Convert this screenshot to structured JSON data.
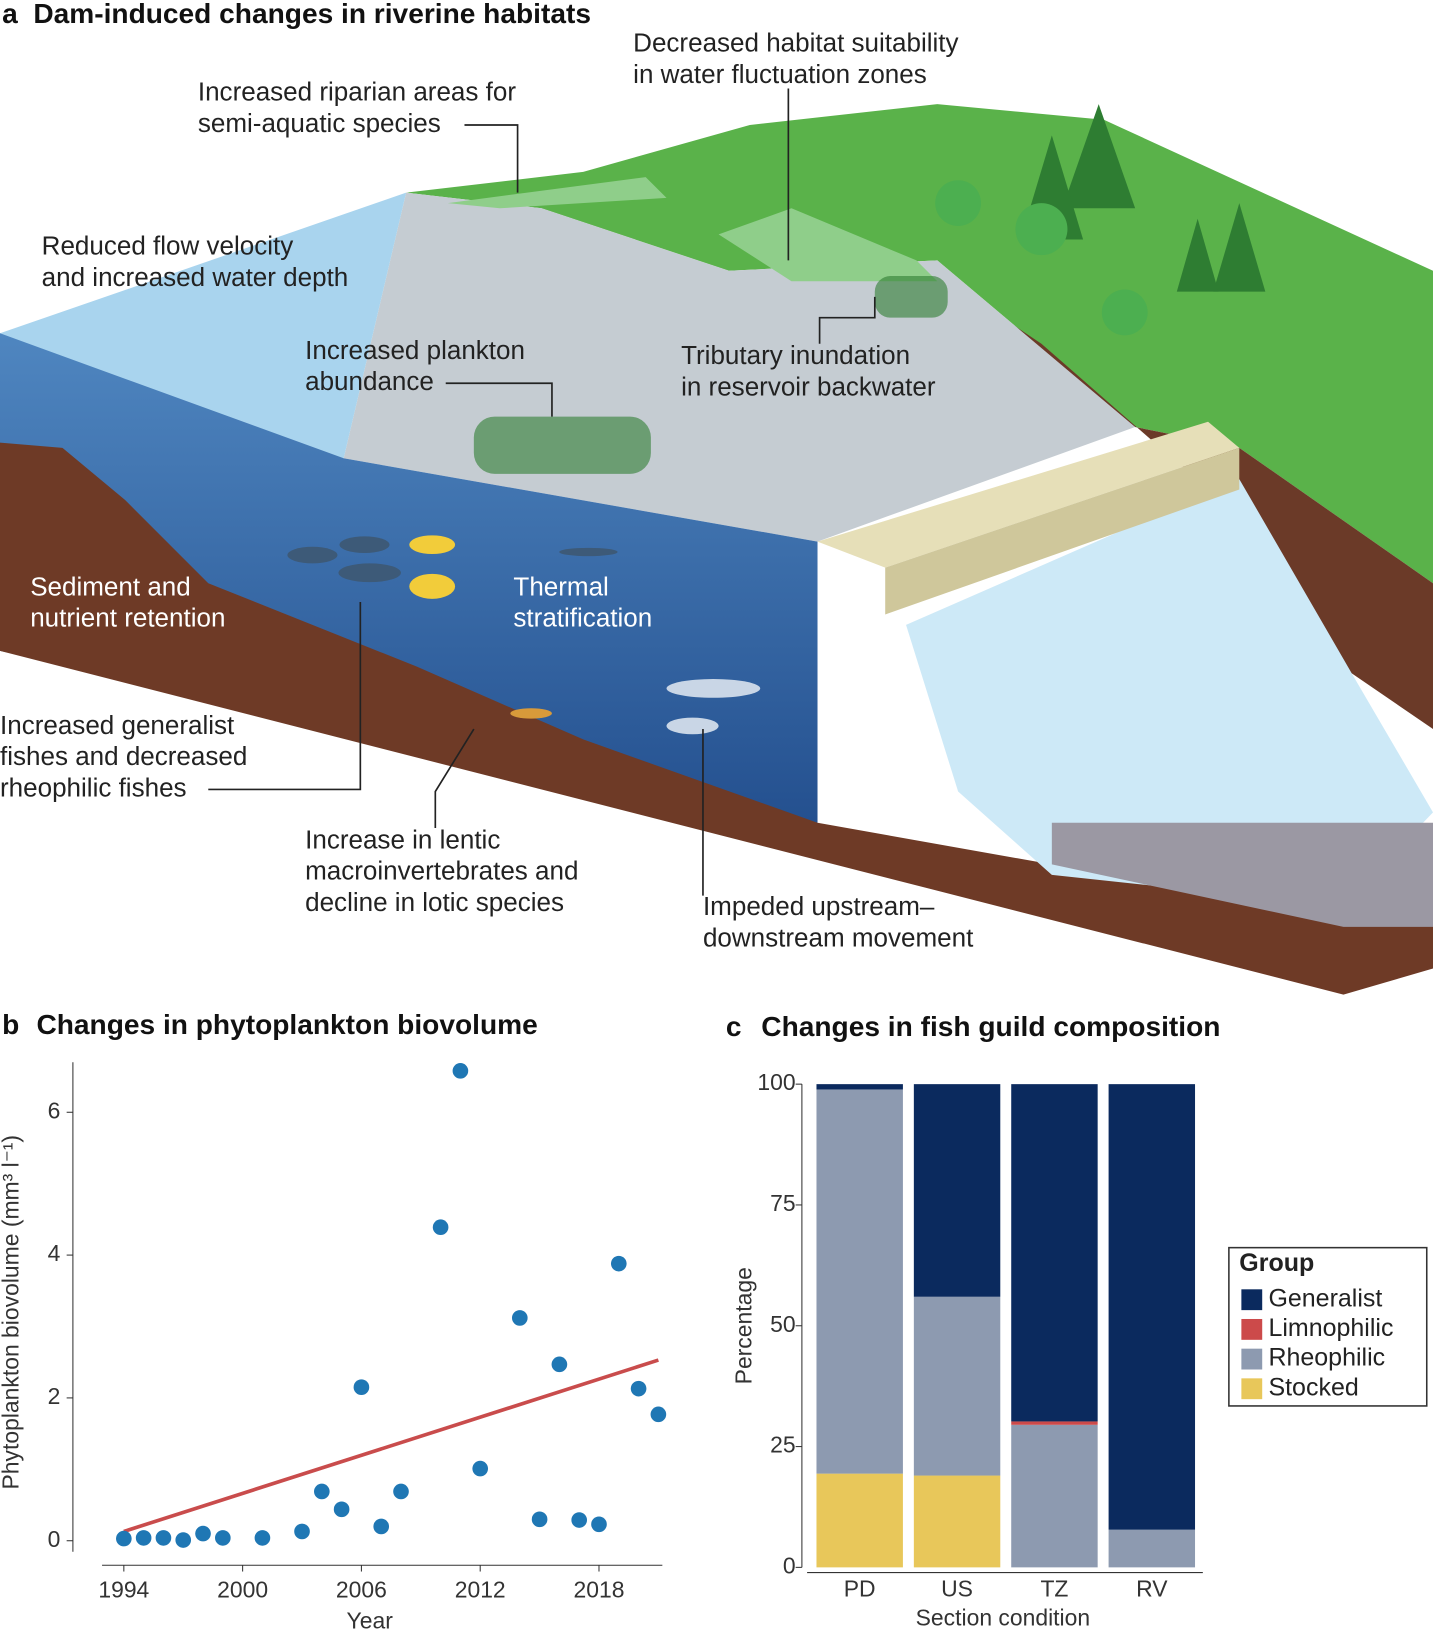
{
  "diagram": {
    "letter": "a",
    "title": "Dam-induced changes in riverine habitats",
    "labels": [
      {
        "lines": [
          "Increased riparian areas for",
          "semi-aquatic species"
        ]
      },
      {
        "lines": [
          "Decreased habitat suitability",
          "in water fluctuation zones"
        ]
      },
      {
        "lines": [
          "Reduced flow velocity",
          "and increased water depth"
        ]
      },
      {
        "lines": [
          "Increased plankton",
          "abundance"
        ]
      },
      {
        "lines": [
          "Tributary inundation",
          "in reservoir backwater"
        ]
      },
      {
        "lines": [
          "Sediment and",
          "nutrient retention"
        ]
      },
      {
        "lines": [
          "Thermal",
          "stratification"
        ]
      },
      {
        "lines": [
          "Increased generalist",
          "fishes and decreased",
          "rheophilic fishes"
        ]
      },
      {
        "lines": [
          "Increase in lentic",
          "macroinvertebrates and",
          "decline in lotic species"
        ]
      },
      {
        "lines": [
          "Impeded upstream–",
          "downstream movement"
        ]
      }
    ]
  },
  "chart_data": [
    {
      "type": "scatter",
      "letter": "b",
      "title": "Changes in phytoplankton biovolume",
      "xlabel": "Year",
      "ylabel": "Phytoplankton biovolume (mm³ l⁻¹)",
      "x": [
        1994,
        1995,
        1996,
        1997,
        1998,
        1999,
        2001,
        2003,
        2004,
        2005,
        2006,
        2007,
        2008,
        2010,
        2011,
        2012,
        2014,
        2015,
        2016,
        2017,
        2018,
        2019,
        2020,
        2021
      ],
      "values": [
        0.03,
        0.04,
        0.04,
        0.01,
        0.1,
        0.04,
        0.04,
        0.13,
        0.69,
        0.44,
        2.15,
        0.2,
        0.69,
        4.39,
        6.58,
        1.01,
        3.12,
        0.3,
        2.47,
        0.29,
        0.23,
        3.88,
        2.13,
        1.77
      ],
      "color": "#1f77b4",
      "trend": {
        "x": [
          1994,
          2021
        ],
        "values": [
          0.13,
          2.53
        ],
        "color": "#c94c4c"
      },
      "xlim": [
        1992.9,
        2021.2
      ],
      "ylim": [
        -0.3,
        6.7
      ],
      "xticks": [
        1994,
        2000,
        2006,
        2012,
        2018
      ],
      "yticks": [
        0,
        2,
        4,
        6
      ]
    },
    {
      "type": "stacked_bar",
      "letter": "c",
      "title": "Changes in fish guild composition",
      "xlabel": "Section condition",
      "ylabel": "Percentage",
      "categories": [
        "PD",
        "US",
        "TZ",
        "RV"
      ],
      "legend_title": "Group",
      "legend": "right",
      "series": [
        {
          "name": "Generalist",
          "color": "#0b2a5e",
          "values": [
            1.1,
            44.0,
            69.8,
            92.2
          ]
        },
        {
          "name": "Limnophilic",
          "color": "#cc4a4a",
          "values": [
            0,
            0,
            0.7,
            0
          ]
        },
        {
          "name": "Rheophilic",
          "color": "#8d9ab0",
          "values": [
            79.5,
            37.0,
            29.5,
            7.8
          ]
        },
        {
          "name": "Stocked",
          "color": "#e8c75a",
          "values": [
            19.4,
            19.0,
            0,
            0
          ]
        }
      ],
      "ylim": [
        0,
        100
      ],
      "yticks": [
        0,
        25,
        50,
        75,
        100
      ]
    }
  ]
}
